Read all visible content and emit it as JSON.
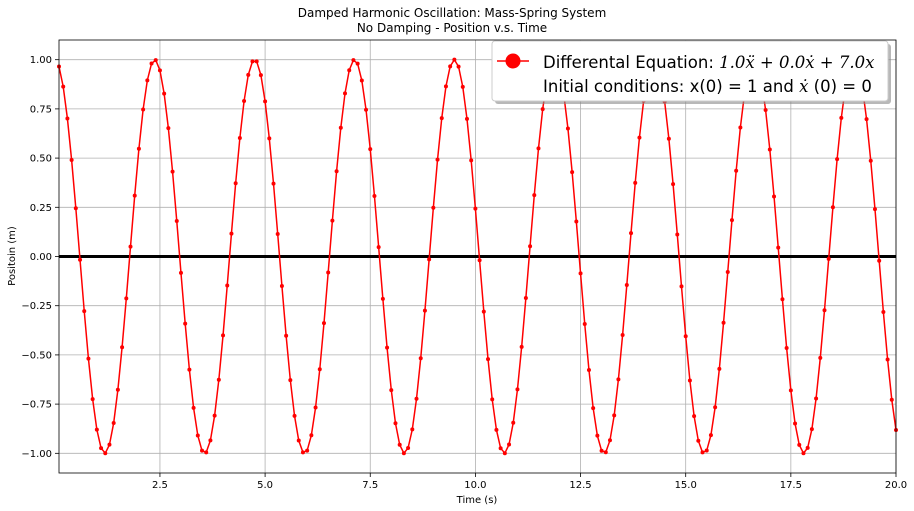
{
  "chart_data": {
    "type": "line",
    "title": "Damped Harmonic Oscillation: Mass-Spring System",
    "subtitle": "No Damping - Position v.s. Time",
    "xlabel": "Time (s)",
    "ylabel": "Positoin (m)",
    "xlim": [
      0.1,
      20.0
    ],
    "ylim": [
      -1.1,
      1.1
    ],
    "x_ticks": [
      2.5,
      5.0,
      7.5,
      10.0,
      12.5,
      15.0,
      17.5,
      20.0
    ],
    "x_tick_labels": [
      "2.5",
      "5.0",
      "7.5",
      "10.0",
      "12.5",
      "15.0",
      "17.5",
      "20.0"
    ],
    "y_ticks": [
      -1.0,
      -0.75,
      -0.5,
      -0.25,
      0.0,
      0.25,
      0.5,
      0.75,
      1.0
    ],
    "y_tick_labels": [
      "−1.00",
      "−0.75",
      "−0.50",
      "−0.25",
      "0.00",
      "0.25",
      "0.50",
      "0.75",
      "1.00"
    ],
    "grid": true,
    "legend_placement": "upper-right",
    "legend": {
      "line1_prefix": "Differental Equation: ",
      "line1_math": "1.0ẍ + 0.0ẋ + 7.0x",
      "line2_prefix": "Initial conditions: x(0) = 1 and ",
      "line2_math": "ẋ",
      "line2_suffix": " (0) = 0"
    },
    "series": [
      {
        "color": "#ff0000",
        "marker": "dot",
        "equation": "x(t) = cos(sqrt(7.0) * t)",
        "omega": 2.6458,
        "amplitude": 1.0,
        "t_start": 0.1,
        "t_end": 20.0,
        "n_points": 200
      }
    ],
    "zero_line": {
      "y": 0.0,
      "color": "#000000"
    }
  }
}
